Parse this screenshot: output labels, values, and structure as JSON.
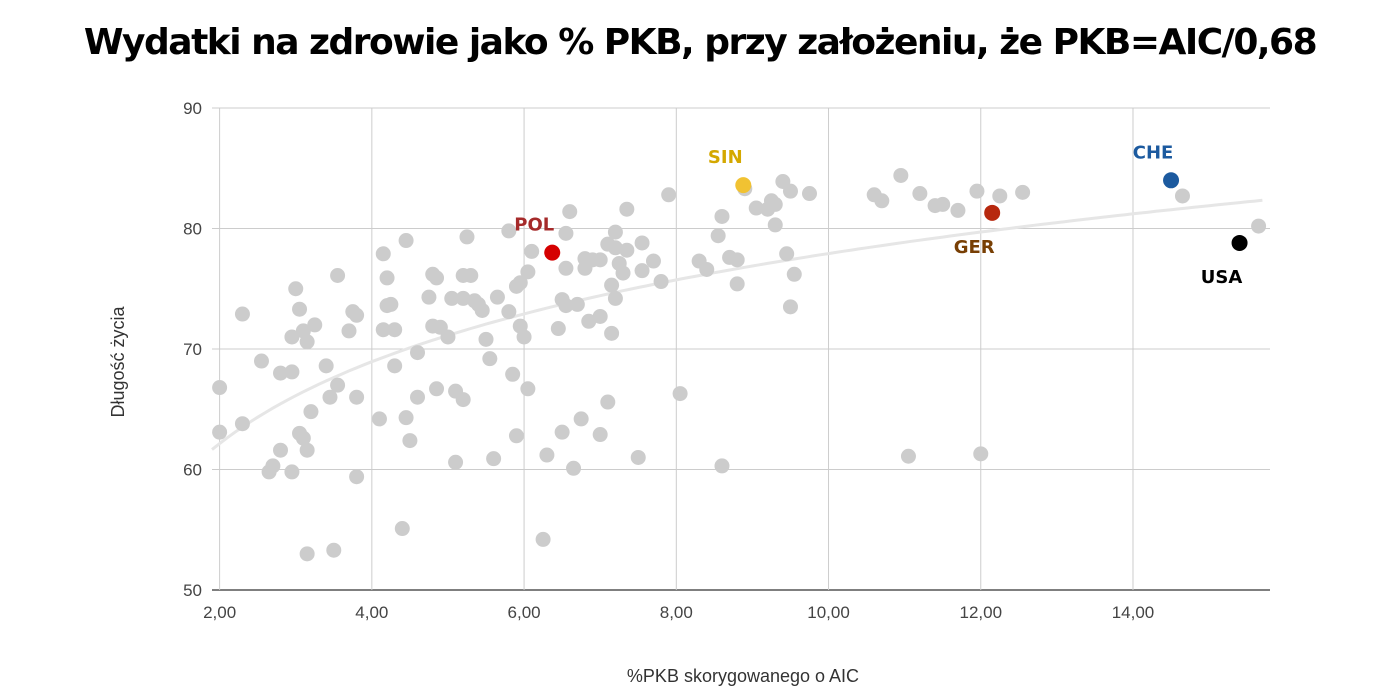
{
  "chart_data": {
    "type": "scatter",
    "title": "Wydatki na zdrowie jako % PKB, przy założeniu, że PKB=AIC/0,68",
    "xlabel": "%PKB skorygowanego o AIC",
    "ylabel": "Długość życia",
    "xlim": [
      1.9,
      15.8
    ],
    "ylim": [
      50,
      90
    ],
    "x_ticks": [
      2,
      4,
      6,
      8,
      10,
      12,
      14
    ],
    "x_tick_labels": [
      "2,00",
      "4,00",
      "6,00",
      "8,00",
      "10,00",
      "12,00",
      "14,00"
    ],
    "y_ticks": [
      50,
      60,
      70,
      80,
      90
    ],
    "y_tick_labels": [
      "50",
      "60",
      "70",
      "80",
      "90"
    ],
    "grid": true,
    "legend": "none",
    "trendline": {
      "type": "logarithmic",
      "color": "#e6e6e6"
    },
    "default_point_color": "#cccccc",
    "highlighted": [
      {
        "label": "POL",
        "x": 6.37,
        "y": 78.0,
        "color": "#d50000",
        "label_color": "#a52a2a",
        "label_pos": "above-left"
      },
      {
        "label": "SIN",
        "x": 8.88,
        "y": 83.6,
        "color": "#f1c232",
        "label_color": "#d4a800",
        "label_pos": "above-left"
      },
      {
        "label": "GER",
        "x": 12.15,
        "y": 81.3,
        "color": "#b7280e",
        "label_color": "#783f04",
        "label_pos": "below-left"
      },
      {
        "label": "CHE",
        "x": 14.5,
        "y": 84.0,
        "color": "#1c5a9f",
        "label_color": "#1c5a9f",
        "label_pos": "above-left"
      },
      {
        "label": "USA",
        "x": 15.4,
        "y": 78.8,
        "color": "#000000",
        "label_color": "#000000",
        "label_pos": "below-left"
      }
    ],
    "points": [
      [
        2.0,
        66.8
      ],
      [
        2.0,
        63.1
      ],
      [
        2.3,
        72.9
      ],
      [
        2.3,
        63.8
      ],
      [
        2.55,
        69.0
      ],
      [
        2.65,
        59.8
      ],
      [
        2.7,
        60.3
      ],
      [
        2.8,
        68.0
      ],
      [
        2.8,
        61.6
      ],
      [
        2.95,
        68.1
      ],
      [
        2.95,
        71.0
      ],
      [
        2.95,
        59.8
      ],
      [
        3.0,
        75.0
      ],
      [
        3.05,
        73.3
      ],
      [
        3.05,
        63.0
      ],
      [
        3.1,
        62.6
      ],
      [
        3.1,
        71.5
      ],
      [
        3.15,
        70.6
      ],
      [
        3.15,
        61.6
      ],
      [
        3.15,
        53.0
      ],
      [
        3.2,
        64.8
      ],
      [
        3.25,
        72.0
      ],
      [
        3.4,
        68.6
      ],
      [
        3.45,
        66.0
      ],
      [
        3.5,
        53.3
      ],
      [
        3.55,
        76.1
      ],
      [
        3.55,
        67.0
      ],
      [
        3.7,
        71.5
      ],
      [
        3.75,
        73.1
      ],
      [
        3.8,
        72.8
      ],
      [
        3.8,
        66.0
      ],
      [
        3.8,
        59.4
      ],
      [
        4.1,
        64.2
      ],
      [
        4.15,
        77.9
      ],
      [
        4.15,
        71.6
      ],
      [
        4.2,
        73.6
      ],
      [
        4.2,
        75.9
      ],
      [
        4.25,
        73.7
      ],
      [
        4.3,
        68.6
      ],
      [
        4.3,
        71.6
      ],
      [
        4.4,
        55.1
      ],
      [
        4.45,
        79.0
      ],
      [
        4.45,
        64.3
      ],
      [
        4.5,
        62.4
      ],
      [
        4.6,
        66.0
      ],
      [
        4.6,
        69.7
      ],
      [
        4.75,
        74.3
      ],
      [
        4.8,
        71.9
      ],
      [
        4.8,
        76.2
      ],
      [
        4.85,
        75.9
      ],
      [
        4.85,
        66.7
      ],
      [
        4.9,
        71.8
      ],
      [
        5.0,
        71.0
      ],
      [
        5.05,
        74.2
      ],
      [
        5.1,
        60.6
      ],
      [
        5.1,
        66.5
      ],
      [
        5.2,
        76.1
      ],
      [
        5.2,
        74.2
      ],
      [
        5.2,
        65.8
      ],
      [
        5.25,
        79.3
      ],
      [
        5.3,
        76.1
      ],
      [
        5.35,
        74.0
      ],
      [
        5.4,
        73.7
      ],
      [
        5.45,
        73.2
      ],
      [
        5.5,
        70.8
      ],
      [
        5.55,
        69.2
      ],
      [
        5.6,
        60.9
      ],
      [
        5.65,
        74.3
      ],
      [
        5.8,
        79.8
      ],
      [
        5.8,
        73.1
      ],
      [
        5.85,
        67.9
      ],
      [
        5.9,
        62.8
      ],
      [
        5.9,
        75.2
      ],
      [
        5.95,
        75.5
      ],
      [
        5.95,
        71.9
      ],
      [
        6.0,
        71.0
      ],
      [
        6.05,
        76.4
      ],
      [
        6.05,
        66.7
      ],
      [
        6.1,
        78.1
      ],
      [
        6.25,
        54.2
      ],
      [
        6.3,
        61.2
      ],
      [
        6.45,
        71.7
      ],
      [
        6.5,
        74.1
      ],
      [
        6.5,
        63.1
      ],
      [
        6.55,
        76.7
      ],
      [
        6.55,
        73.6
      ],
      [
        6.55,
        79.6
      ],
      [
        6.6,
        81.4
      ],
      [
        6.65,
        60.1
      ],
      [
        6.7,
        73.7
      ],
      [
        6.75,
        64.2
      ],
      [
        6.8,
        77.5
      ],
      [
        6.8,
        76.7
      ],
      [
        6.85,
        72.3
      ],
      [
        6.9,
        77.4
      ],
      [
        7.0,
        77.4
      ],
      [
        7.0,
        72.7
      ],
      [
        7.0,
        62.9
      ],
      [
        7.1,
        78.7
      ],
      [
        7.1,
        65.6
      ],
      [
        7.15,
        75.3
      ],
      [
        7.15,
        71.3
      ],
      [
        7.2,
        78.4
      ],
      [
        7.2,
        79.7
      ],
      [
        7.2,
        74.2
      ],
      [
        7.25,
        77.1
      ],
      [
        7.3,
        76.3
      ],
      [
        7.35,
        81.6
      ],
      [
        7.35,
        78.2
      ],
      [
        7.5,
        61.0
      ],
      [
        7.55,
        78.8
      ],
      [
        7.55,
        76.5
      ],
      [
        7.7,
        77.3
      ],
      [
        7.8,
        75.6
      ],
      [
        7.9,
        82.8
      ],
      [
        8.05,
        66.3
      ],
      [
        8.3,
        77.3
      ],
      [
        8.4,
        76.6
      ],
      [
        8.55,
        79.4
      ],
      [
        8.6,
        81.0
      ],
      [
        8.6,
        60.3
      ],
      [
        8.7,
        77.6
      ],
      [
        8.8,
        75.4
      ],
      [
        8.8,
        77.4
      ],
      [
        8.9,
        83.3
      ],
      [
        9.05,
        81.7
      ],
      [
        9.2,
        81.6
      ],
      [
        9.25,
        82.3
      ],
      [
        9.3,
        80.3
      ],
      [
        9.3,
        82.0
      ],
      [
        9.4,
        83.9
      ],
      [
        9.45,
        77.9
      ],
      [
        9.5,
        83.1
      ],
      [
        9.5,
        73.5
      ],
      [
        9.55,
        76.2
      ],
      [
        9.75,
        82.9
      ],
      [
        10.6,
        82.8
      ],
      [
        10.7,
        82.3
      ],
      [
        10.95,
        84.4
      ],
      [
        11.05,
        61.1
      ],
      [
        11.2,
        82.9
      ],
      [
        11.4,
        81.9
      ],
      [
        11.5,
        82.0
      ],
      [
        11.7,
        81.5
      ],
      [
        11.95,
        83.1
      ],
      [
        12.0,
        61.3
      ],
      [
        12.25,
        82.7
      ],
      [
        12.55,
        83.0
      ],
      [
        14.65,
        82.7
      ],
      [
        15.65,
        80.2
      ]
    ]
  }
}
